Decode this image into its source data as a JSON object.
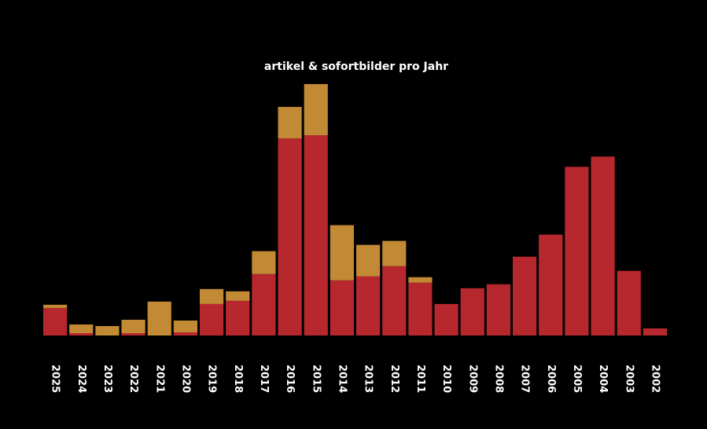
{
  "chart_data": {
    "type": "bar",
    "stacked": true,
    "title": "artikel & sofortbilder pro Jahr",
    "xlabel": "",
    "ylabel": "",
    "categories": [
      "2025",
      "2024",
      "2023",
      "2022",
      "2021",
      "2020",
      "2019",
      "2018",
      "2017",
      "2016",
      "2015",
      "2014",
      "2013",
      "2012",
      "2011",
      "2010",
      "2009",
      "2008",
      "2007",
      "2006",
      "2005",
      "2004",
      "2003",
      "2002"
    ],
    "series": [
      {
        "key": "primary",
        "values": [
          35,
          3,
          0,
          3,
          0,
          4,
          40,
          44,
          78,
          250,
          254,
          70,
          75,
          88,
          67,
          40,
          60,
          65,
          100,
          128,
          214,
          227,
          82,
          9
        ]
      },
      {
        "key": "secondary",
        "values": [
          4,
          11,
          12,
          17,
          43,
          15,
          19,
          12,
          29,
          40,
          65,
          70,
          40,
          32,
          7,
          0,
          0,
          0,
          0,
          0,
          0,
          0,
          0,
          0
        ]
      }
    ],
    "colors": {
      "primary": "#b7282e",
      "secondary": "#c28a34",
      "background": "#000000",
      "text": "#ffffff"
    },
    "ylim": [
      0,
      320
    ],
    "grid": false,
    "legend": "none"
  }
}
